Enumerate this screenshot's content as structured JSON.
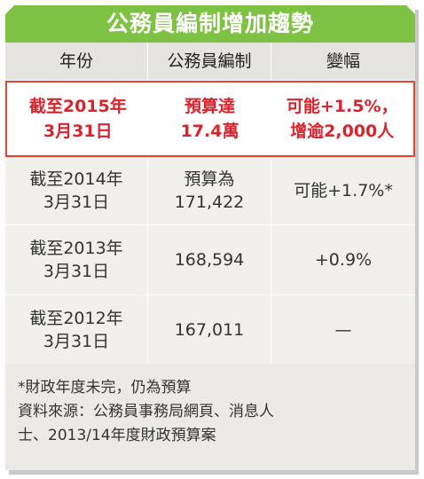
{
  "title": "公務員編制增加趨勢",
  "table": {
    "headers": [
      "年份",
      "公務員編制",
      "變幅"
    ],
    "highlight": {
      "year": [
        "截至2015年",
        "3月31日"
      ],
      "staff": [
        "預算達",
        "17.4萬"
      ],
      "change": [
        "可能+1.5%，",
        "增逾2,000人"
      ]
    },
    "rows": [
      {
        "year": [
          "截至2014年",
          "3月31日"
        ],
        "staff": [
          "預算為",
          "171,422"
        ],
        "change": "可能+1.7%*"
      },
      {
        "year": [
          "截至2013年",
          "3月31日"
        ],
        "staff": [
          "168,594"
        ],
        "change": "+0.9%"
      },
      {
        "year": [
          "截至2012年",
          "3月31日"
        ],
        "staff": [
          "167,011"
        ],
        "change": "—"
      }
    ]
  },
  "footnote": "*財政年度未完，仍為預算",
  "source": [
    "資料來源：公務員事務局網頁、消息人",
    "士、2013/14年度財政預算案"
  ]
}
